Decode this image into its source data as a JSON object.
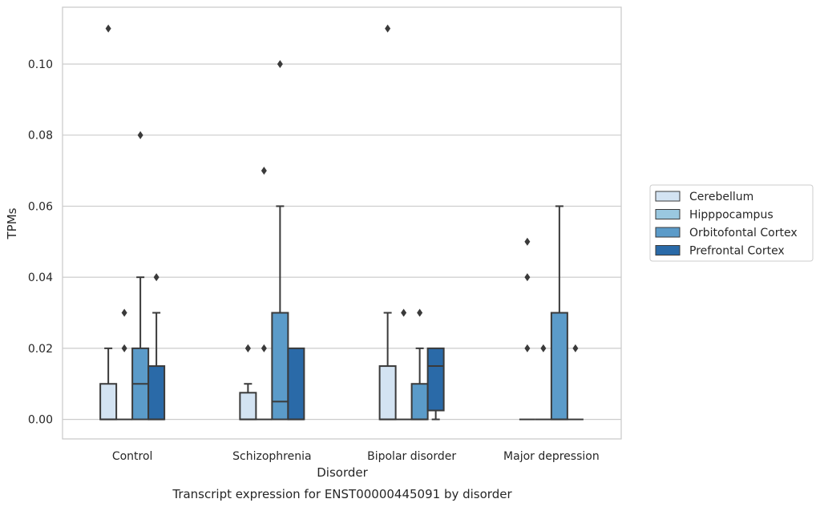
{
  "chart_data": {
    "type": "box",
    "title": "",
    "caption": "Transcript expression for ENST00000445091 by disorder",
    "xlabel": "Disorder",
    "ylabel": "TPMs",
    "ylim": [
      -0.0055,
      0.116
    ],
    "yticks": [
      0.0,
      0.02,
      0.04,
      0.06,
      0.08,
      0.1
    ],
    "ytick_labels": [
      "0.00",
      "0.02",
      "0.04",
      "0.06",
      "0.08",
      "0.10"
    ],
    "grid": "horizontal",
    "legend_position": "right",
    "categories": [
      "Control",
      "Schizophrenia",
      "Bipolar disorder",
      "Major depression"
    ],
    "series": [
      {
        "name": "Cerebellum",
        "color": "#d3e3f2",
        "boxes": [
          {
            "q1": 0.0,
            "median": 0.0,
            "q3": 0.01,
            "whislo": 0.0,
            "whishi": 0.02,
            "fliers": [
              0.11
            ]
          },
          {
            "q1": 0.0,
            "median": 0.0,
            "q3": 0.0075,
            "whislo": 0.0,
            "whishi": 0.01,
            "fliers": [
              0.02,
              0.02
            ]
          },
          {
            "q1": 0.0,
            "median": 0.0,
            "q3": 0.015,
            "whislo": 0.0,
            "whishi": 0.03,
            "fliers": [
              0.11
            ]
          },
          {
            "q1": 0.0,
            "median": 0.0,
            "q3": 0.0,
            "whislo": 0.0,
            "whishi": 0.0,
            "fliers": [
              0.02,
              0.04,
              0.05
            ]
          }
        ]
      },
      {
        "name": "Hipppocampus",
        "color": "#9ac8e0",
        "boxes": [
          {
            "q1": 0.0,
            "median": 0.0,
            "q3": 0.0,
            "whislo": 0.0,
            "whishi": 0.0,
            "fliers": [
              0.02,
              0.03
            ]
          },
          {
            "q1": 0.0,
            "median": 0.0,
            "q3": 0.0,
            "whislo": 0.0,
            "whishi": 0.0,
            "fliers": [
              0.02,
              0.07
            ]
          },
          {
            "q1": 0.0,
            "median": 0.0,
            "q3": 0.0,
            "whislo": 0.0,
            "whishi": 0.0,
            "fliers": [
              0.03
            ]
          },
          {
            "q1": 0.0,
            "median": 0.0,
            "q3": 0.0,
            "whislo": 0.0,
            "whishi": 0.0,
            "fliers": [
              0.02
            ]
          }
        ]
      },
      {
        "name": "Orbitofontal Cortex",
        "color": "#5b9bc9",
        "boxes": [
          {
            "q1": 0.0,
            "median": 0.01,
            "q3": 0.02,
            "whislo": 0.0,
            "whishi": 0.04,
            "fliers": [
              0.08
            ]
          },
          {
            "q1": 0.0,
            "median": 0.005,
            "q3": 0.03,
            "whislo": 0.0,
            "whishi": 0.06,
            "fliers": [
              0.1
            ]
          },
          {
            "q1": 0.0,
            "median": 0.0,
            "q3": 0.01,
            "whislo": 0.0,
            "whishi": 0.02,
            "fliers": [
              0.03
            ]
          },
          {
            "q1": 0.0,
            "median": 0.0,
            "q3": 0.03,
            "whislo": 0.0,
            "whishi": 0.06,
            "fliers": []
          }
        ]
      },
      {
        "name": "Prefrontal Cortex",
        "color": "#2a6aa8",
        "boxes": [
          {
            "q1": 0.0,
            "median": 0.0,
            "q3": 0.015,
            "whislo": 0.0,
            "whishi": 0.03,
            "fliers": [
              0.04
            ]
          },
          {
            "q1": 0.0,
            "median": 0.0,
            "q3": 0.02,
            "whislo": 0.0,
            "whishi": 0.02,
            "fliers": []
          },
          {
            "q1": 0.0025,
            "median": 0.015,
            "q3": 0.02,
            "whislo": 0.0,
            "whishi": 0.02,
            "fliers": []
          },
          {
            "q1": 0.0,
            "median": 0.0,
            "q3": 0.0,
            "whislo": 0.0,
            "whishi": 0.0,
            "fliers": [
              0.02
            ]
          }
        ]
      }
    ]
  }
}
